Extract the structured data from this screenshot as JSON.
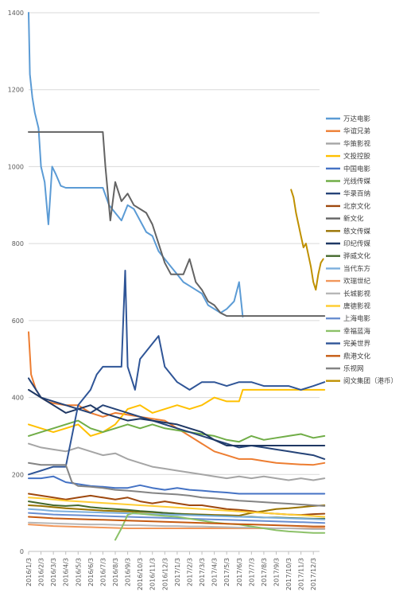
{
  "chart_data": {
    "type": "line",
    "title": "",
    "xlabel": "",
    "ylabel": "",
    "ylim": [
      0,
      1400
    ],
    "yticks": [
      0,
      200,
      400,
      600,
      800,
      1000,
      1200,
      1400
    ],
    "grid": "horizontal",
    "legend_position": "right",
    "x_ticks": [
      "2016/1/3",
      "2016/2/3",
      "2016/3/3",
      "2016/4/3",
      "2016/5/3",
      "2016/6/3",
      "2016/7/3",
      "2016/8/3",
      "2016/9/3",
      "2016/10/3",
      "2016/11/3",
      "2016/12/3",
      "2017/1/3",
      "2017/2/3",
      "2017/3/3",
      "2017/4/3",
      "2017/5/3",
      "2017/6/3",
      "2017/7/3",
      "2017/8/3",
      "2017/9/3",
      "2017/10/3",
      "2017/11/3",
      "2017/12/3"
    ],
    "series": [
      {
        "name": "万达电影",
        "color": "#5b9bd5",
        "x": [
          0,
          0.1,
          0.3,
          0.5,
          0.8,
          1.0,
          1.3,
          1.6,
          1.9,
          2.2,
          2.6,
          3.0,
          3.5,
          4.0,
          5.0,
          6.0,
          6.5,
          7.0,
          7.5,
          8.0,
          8.5,
          9.0,
          9.5,
          10.0,
          10.5,
          11.0,
          11.5,
          12.0,
          12.5,
          13.0,
          13.5,
          14.0,
          14.5,
          15.0,
          15.5,
          16.0,
          16.3,
          16.6,
          17.0,
          17.3
        ],
        "values": [
          1400,
          1240,
          1180,
          1140,
          1100,
          1000,
          960,
          850,
          1000,
          980,
          950,
          945,
          945,
          945,
          945,
          945,
          900,
          880,
          860,
          900,
          890,
          860,
          830,
          820,
          780,
          760,
          740,
          720,
          700,
          690,
          680,
          670,
          640,
          630,
          620,
          630,
          640,
          650,
          700,
          610
        ]
      },
      {
        "name": "华谊兄弟",
        "color": "#ed7d31",
        "x": [
          0,
          0.2,
          0.6,
          1.0,
          1.5,
          2.0,
          3.0,
          4.0,
          5.0,
          6.0,
          7.0,
          8.0,
          9.0,
          10.0,
          11.0,
          12.0,
          13.0,
          14.0,
          15.0,
          16.0,
          17.0,
          18.0,
          19.0,
          20.0,
          21.0,
          22.0,
          23.0,
          23.9
        ],
        "values": [
          570,
          460,
          420,
          400,
          390,
          385,
          380,
          380,
          360,
          350,
          360,
          355,
          350,
          345,
          340,
          320,
          300,
          280,
          260,
          250,
          240,
          240,
          235,
          230,
          228,
          226,
          225,
          230
        ]
      },
      {
        "name": "华策影视",
        "color": "#a5a5a5",
        "x": [
          0,
          1,
          2,
          3,
          4,
          5,
          6,
          7,
          8,
          9,
          10,
          11,
          12,
          13,
          14,
          15,
          16,
          17,
          18,
          19,
          20,
          21,
          22,
          23,
          23.9
        ],
        "values": [
          280,
          270,
          265,
          260,
          270,
          260,
          250,
          255,
          240,
          230,
          220,
          215,
          210,
          205,
          200,
          195,
          190,
          195,
          190,
          195,
          190,
          185,
          190,
          185,
          190
        ]
      },
      {
        "name": "文投控股",
        "color": "#ffc000",
        "x": [
          0,
          1,
          2,
          3,
          4,
          5,
          6,
          7,
          8,
          9,
          10,
          11,
          12,
          13,
          14,
          15,
          16,
          17,
          17.3,
          18,
          19,
          20,
          21,
          22,
          23,
          23.9
        ],
        "values": [
          330,
          320,
          310,
          320,
          330,
          300,
          310,
          330,
          370,
          380,
          360,
          370,
          380,
          370,
          380,
          400,
          390,
          390,
          420,
          420,
          420,
          420,
          420,
          420,
          420,
          420
        ]
      },
      {
        "name": "中国电影",
        "color": "#4472c4",
        "x": [
          0,
          1,
          2,
          3,
          4,
          5,
          6,
          7,
          8,
          9,
          10,
          11,
          12,
          13,
          14,
          15,
          16,
          17,
          18,
          19,
          20,
          21,
          22,
          23,
          23.9
        ],
        "values": [
          190,
          190,
          195,
          180,
          175,
          170,
          168,
          165,
          165,
          172,
          165,
          160,
          165,
          160,
          158,
          155,
          153,
          150,
          150,
          150,
          150,
          150,
          150,
          150,
          150
        ]
      },
      {
        "name": "光线传媒",
        "color": "#70ad47",
        "x": [
          0,
          1,
          2,
          3,
          4,
          5,
          6,
          7,
          8,
          9,
          10,
          11,
          12,
          13,
          14,
          15,
          16,
          17,
          18,
          19,
          20,
          21,
          22,
          23,
          23.9
        ],
        "values": [
          300,
          310,
          320,
          330,
          340,
          320,
          310,
          320,
          330,
          320,
          330,
          320,
          315,
          310,
          305,
          300,
          290,
          285,
          300,
          290,
          295,
          300,
          305,
          295,
          300
        ]
      },
      {
        "name": "华录百纳",
        "color": "#264478",
        "x": [
          0,
          1,
          2,
          3,
          4,
          5,
          6,
          7,
          8,
          9,
          10,
          11,
          12,
          13,
          14,
          15,
          16,
          17,
          18,
          19,
          20,
          21,
          22,
          23,
          23.9
        ],
        "values": [
          450,
          400,
          390,
          380,
          370,
          360,
          380,
          370,
          360,
          350,
          340,
          330,
          320,
          310,
          300,
          290,
          280,
          270,
          275,
          270,
          265,
          260,
          255,
          250,
          240
        ]
      },
      {
        "name": "北京文化",
        "color": "#9e480e",
        "x": [
          0,
          1,
          2,
          3,
          4,
          5,
          6,
          7,
          8,
          9,
          10,
          11,
          12,
          13,
          14,
          15,
          16,
          17,
          18,
          19,
          20,
          21,
          22,
          23,
          23.9
        ],
        "values": [
          150,
          145,
          140,
          135,
          140,
          145,
          140,
          135,
          140,
          130,
          125,
          130,
          125,
          120,
          120,
          115,
          110,
          108,
          105,
          100,
          98,
          96,
          95,
          97,
          98
        ]
      },
      {
        "name": "新文化",
        "color": "#636363",
        "x": [
          0,
          2,
          4,
          6,
          6.2,
          6.6,
          7.0,
          7.5,
          8.0,
          8.5,
          9.0,
          9.5,
          10.0,
          10.5,
          11.0,
          11.5,
          12.0,
          12.5,
          13.0,
          13.5,
          14.0,
          14.5,
          15.0,
          15.5,
          16.0,
          17.0,
          18.0,
          19.0,
          20.0,
          21.0,
          22.0,
          23.0,
          23.9
        ],
        "values": [
          1090,
          1090,
          1090,
          1090,
          1000,
          860,
          960,
          910,
          930,
          900,
          890,
          880,
          850,
          800,
          750,
          720,
          720,
          720,
          760,
          700,
          680,
          650,
          640,
          620,
          612,
          612,
          612,
          612,
          612,
          612,
          612,
          612,
          612
        ]
      },
      {
        "name": "慈文传媒",
        "color": "#997300",
        "x": [
          0,
          1,
          2,
          3,
          4,
          5,
          6,
          7,
          8,
          9,
          10,
          11,
          12,
          13,
          14,
          15,
          16,
          17,
          18,
          19,
          20,
          21,
          22,
          23,
          23.9
        ],
        "values": [
          120,
          118,
          115,
          112,
          110,
          108,
          106,
          105,
          104,
          103,
          102,
          100,
          98,
          97,
          96,
          95,
          94,
          93,
          100,
          105,
          110,
          112,
          115,
          118,
          120
        ]
      },
      {
        "name": "印纪传媒",
        "color": "#1f3864",
        "x": [
          0,
          1,
          2,
          3,
          4,
          5,
          6,
          7,
          8,
          9,
          10,
          11,
          12,
          13,
          14,
          15,
          16,
          17,
          18,
          19,
          20,
          21,
          22,
          23,
          23.9
        ],
        "values": [
          420,
          400,
          380,
          360,
          370,
          380,
          360,
          350,
          340,
          345,
          340,
          335,
          330,
          320,
          310,
          290,
          275,
          275,
          275,
          275,
          275,
          275,
          275,
          275,
          275
        ]
      },
      {
        "name": "骅威文化",
        "color": "#43682b",
        "x": [
          0,
          1,
          2,
          3,
          4,
          5,
          6,
          7,
          8,
          9,
          10,
          11,
          12,
          13,
          14,
          15,
          16,
          17,
          18,
          19,
          20,
          21,
          22,
          23,
          23.9
        ],
        "values": [
          130,
          125,
          120,
          118,
          120,
          115,
          112,
          110,
          108,
          105,
          103,
          100,
          98,
          96,
          95,
          93,
          92,
          90,
          90,
          88,
          88,
          87,
          86,
          85,
          85
        ]
      },
      {
        "name": "当代东方",
        "color": "#7cafdd",
        "x": [
          0,
          1,
          2,
          3,
          4,
          5,
          6,
          7,
          8,
          9,
          10,
          11,
          12,
          13,
          14,
          15,
          16,
          17,
          18,
          19,
          20,
          21,
          22,
          23,
          23.9
        ],
        "values": [
          110,
          108,
          105,
          104,
          103,
          102,
          101,
          100,
          99,
          98,
          97,
          96,
          95,
          94,
          93,
          92,
          91,
          90,
          89,
          88,
          87,
          86,
          85,
          84,
          83
        ]
      },
      {
        "name": "欢瑞世纪",
        "color": "#f1975a",
        "x": [
          0,
          1,
          2,
          3,
          4,
          5,
          6,
          7,
          8,
          9,
          10,
          11,
          12,
          13,
          14,
          15,
          16,
          17,
          18,
          19,
          20,
          21,
          22,
          23,
          23.9
        ],
        "values": [
          70,
          68,
          66,
          65,
          64,
          63,
          62,
          61,
          60,
          60,
          60,
          60,
          60,
          60,
          60,
          60,
          60,
          60,
          60,
          60,
          60,
          60,
          60,
          60,
          60
        ]
      },
      {
        "name": "长城影视",
        "color": "#b7b7b7",
        "x": [
          0,
          1,
          2,
          3,
          4,
          5,
          6,
          7,
          8,
          9,
          10,
          11,
          12,
          13,
          14,
          15,
          16,
          17,
          18,
          19,
          20,
          21,
          22,
          23,
          23.9
        ],
        "values": [
          75,
          74,
          73,
          72,
          71,
          70,
          70,
          69,
          68,
          68,
          67,
          66,
          66,
          65,
          65,
          64,
          63,
          62,
          62,
          61,
          60,
          60,
          59,
          58,
          58
        ]
      },
      {
        "name": "唐德影视",
        "color": "#ffcd33",
        "x": [
          0,
          1,
          2,
          3,
          4,
          5,
          6,
          7,
          8,
          9,
          10,
          11,
          12,
          13,
          14,
          15,
          16,
          17,
          18,
          19,
          20,
          21,
          22,
          23,
          23.9
        ],
        "values": [
          140,
          138,
          135,
          132,
          130,
          128,
          126,
          124,
          122,
          120,
          118,
          116,
          114,
          112,
          110,
          108,
          106,
          104,
          102,
          100,
          98,
          96,
          94,
          92,
          90
        ]
      },
      {
        "name": "上海电影",
        "color": "#698ed0",
        "x": [
          0,
          1,
          2,
          3,
          4,
          5,
          6,
          7,
          8,
          9,
          10,
          11,
          12,
          13,
          14,
          15,
          16,
          17,
          18,
          19,
          20,
          21,
          22,
          23,
          23.9
        ],
        "values": [
          100,
          98,
          96,
          95,
          94,
          93,
          92,
          91,
          90,
          89,
          88,
          87,
          86,
          85,
          84,
          83,
          82,
          81,
          80,
          79,
          78,
          77,
          76,
          75,
          74
        ]
      },
      {
        "name": "幸福蓝海",
        "color": "#8cc168",
        "x": [
          7.0,
          7.5,
          8.0,
          8.5,
          9,
          10,
          11,
          12,
          13,
          14,
          15,
          16,
          17,
          18,
          19,
          20,
          21,
          22,
          23,
          23.9
        ],
        "values": [
          30,
          60,
          95,
          100,
          98,
          95,
          92,
          90,
          85,
          80,
          75,
          72,
          70,
          65,
          60,
          55,
          52,
          50,
          48,
          48
        ]
      },
      {
        "name": "完美世界",
        "color": "#2f5597",
        "x": [
          0,
          1,
          2,
          3,
          3.5,
          4,
          5,
          5.5,
          6,
          7,
          7.5,
          7.8,
          8.0,
          8.3,
          8.6,
          9,
          10,
          10.5,
          11,
          12,
          13,
          14,
          15,
          16,
          17,
          18,
          19,
          20,
          21,
          22,
          23,
          23.9
        ],
        "values": [
          200,
          210,
          220,
          220,
          300,
          380,
          420,
          460,
          480,
          480,
          480,
          730,
          480,
          450,
          420,
          500,
          540,
          560,
          480,
          440,
          420,
          440,
          440,
          430,
          440,
          440,
          430,
          430,
          430,
          420,
          430,
          440
        ]
      },
      {
        "name": "鼎港文化",
        "color": "#c55a11",
        "x": [
          0,
          1,
          2,
          3,
          4,
          5,
          6,
          7,
          8,
          9,
          10,
          11,
          12,
          13,
          14,
          15,
          16,
          17,
          18,
          19,
          20,
          21,
          22,
          23,
          23.9
        ],
        "values": [
          90,
          88,
          86,
          85,
          84,
          83,
          82,
          81,
          80,
          79,
          78,
          77,
          76,
          75,
          74,
          73,
          72,
          71,
          70,
          69,
          68,
          67,
          66,
          65,
          65
        ]
      },
      {
        "name": "乐视网",
        "color": "#848484",
        "x": [
          0,
          1,
          2,
          3,
          3.5,
          4,
          5,
          6,
          7,
          8,
          9,
          10,
          11,
          12,
          13,
          14,
          15,
          16,
          17,
          18,
          19,
          20,
          21,
          22,
          23,
          23.9
        ],
        "values": [
          230,
          225,
          225,
          225,
          180,
          170,
          168,
          165,
          160,
          158,
          155,
          152,
          150,
          148,
          145,
          140,
          138,
          135,
          132,
          130,
          128,
          126,
          124,
          122,
          120,
          118
        ]
      },
      {
        "name": "阅文集团（港币）",
        "color": "#bf9000",
        "x": [
          21.2,
          21.4,
          21.6,
          21.8,
          22.0,
          22.2,
          22.4,
          22.6,
          22.8,
          23.0,
          23.2,
          23.4,
          23.6,
          23.8
        ],
        "values": [
          940,
          920,
          880,
          850,
          820,
          790,
          800,
          770,
          740,
          700,
          680,
          720,
          750,
          760
        ]
      }
    ]
  }
}
